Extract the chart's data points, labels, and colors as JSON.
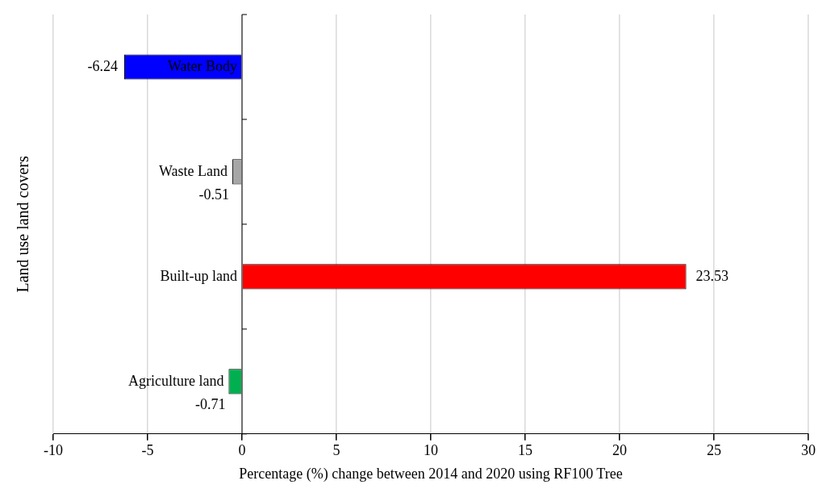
{
  "chart_data": {
    "type": "bar",
    "orientation": "horizontal",
    "xlabel": "Percentage (%) change between 2014 and 2020 using RF100 Tree",
    "ylabel": "Land use land covers",
    "categories": [
      "Water Body",
      "Waste Land",
      "Built-up land",
      "Agriculture land"
    ],
    "values": [
      -6.24,
      -0.51,
      23.53,
      -0.71
    ],
    "colors": [
      "#0000ff",
      "#a6a6a6",
      "#ff0000",
      "#00b050"
    ],
    "xlim": [
      -10,
      30
    ],
    "xticks": [
      -10,
      -5,
      0,
      5,
      10,
      15,
      20,
      25,
      30
    ],
    "grid": "x",
    "data_labels": true,
    "legend": false
  }
}
